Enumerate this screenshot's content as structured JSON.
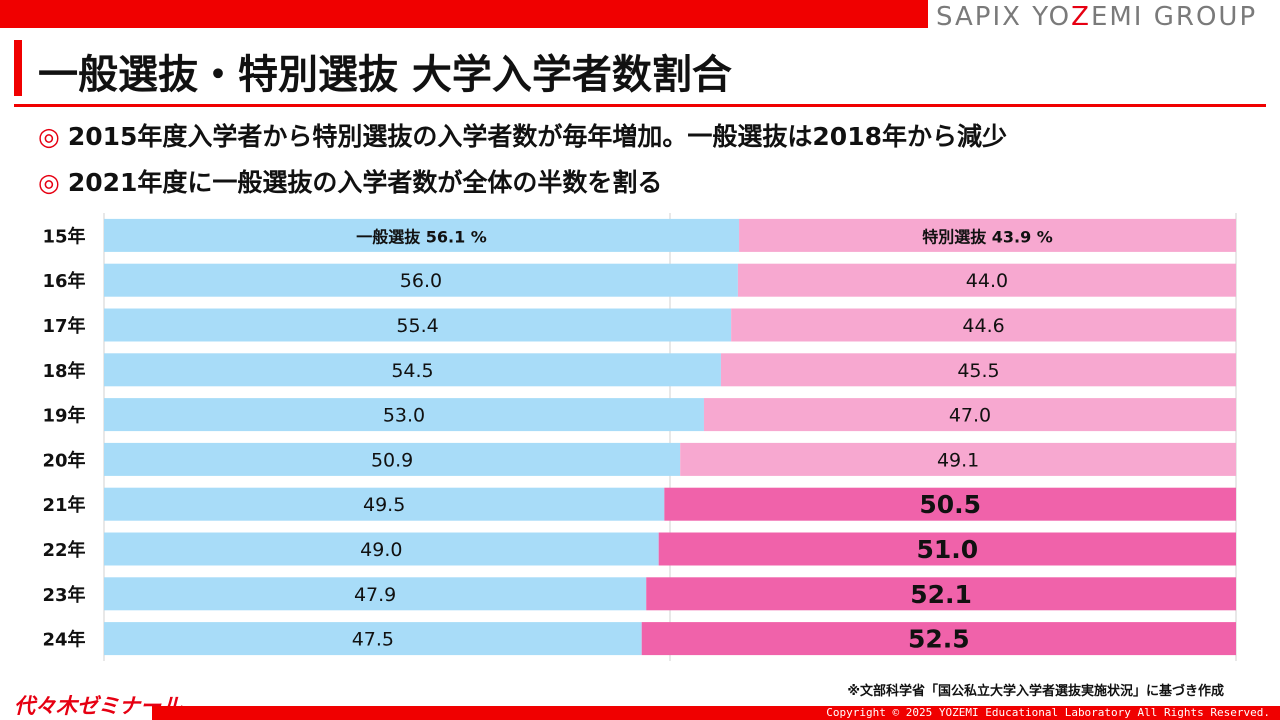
{
  "header": {
    "brand_prefix": "SAPIX YO",
    "brand_z": "Z",
    "brand_suffix": "EMI GROUP",
    "title": "一般選抜・特別選抜 大学入学者数割合"
  },
  "bullets": [
    {
      "mark": "◎",
      "text": "2015年度入学者から特別選抜の入学者数が毎年増加。一般選抜は2018年から減少"
    },
    {
      "mark": "◎",
      "text": "2021年度に一般選抜の入学者数が全体の半数を割る"
    }
  ],
  "colors": {
    "general": "#a8dcf8",
    "special_light": "#f7a8d0",
    "special_dark": "#f062aa",
    "accent": "#f00000"
  },
  "chart_data": {
    "type": "bar",
    "orientation": "horizontal",
    "stacked": true,
    "percent": true,
    "categories": [
      "15年",
      "16年",
      "17年",
      "18年",
      "19年",
      "20年",
      "21年",
      "22年",
      "23年",
      "24年"
    ],
    "series": [
      {
        "name": "一般選抜",
        "values": [
          56.1,
          56.0,
          55.4,
          54.5,
          53.0,
          50.9,
          49.5,
          49.0,
          47.9,
          47.5
        ],
        "labels": [
          "一般選抜 56.1 %",
          "56.0",
          "55.4",
          "54.5",
          "53.0",
          "50.9",
          "49.5",
          "49.0",
          "47.9",
          "47.5"
        ]
      },
      {
        "name": "特別選抜",
        "values": [
          43.9,
          44.0,
          44.6,
          45.5,
          47.0,
          49.1,
          50.5,
          51.0,
          52.1,
          52.5
        ],
        "labels": [
          "特別選抜 43.9 %",
          "44.0",
          "44.6",
          "45.5",
          "47.0",
          "49.1",
          "50.5",
          "51.0",
          "52.1",
          "52.5"
        ]
      }
    ],
    "xlim": [
      0,
      100
    ],
    "grid": true,
    "highlight_from_category": "21年"
  },
  "footer": {
    "source": "※文部科学省「国公私立大学入学者選抜実施状況」に基づき作成",
    "logo": "代々木ゼミナール",
    "copyright": "Copyright © 2025 YOZEMI Educational Laboratory All Rights Reserved."
  }
}
